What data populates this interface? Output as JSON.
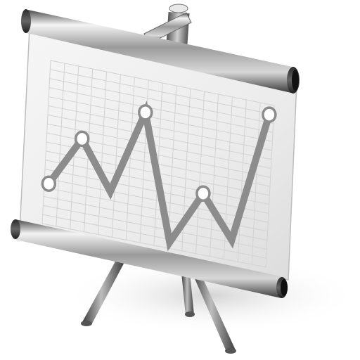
{
  "icon": {
    "name": "presentation-easel-icon",
    "colors": {
      "chart_line": "#8c8c8c",
      "grid": "#d2d2d2",
      "screen": "#eeeeee",
      "metal_dark": "#3a3a3a",
      "metal_light": "#f2f2f2",
      "leg": "#6a6a6a",
      "shadow": "#d8d8d8"
    }
  },
  "chart_data": {
    "type": "line",
    "markers": [
      true,
      true,
      false,
      true,
      true,
      false,
      true
    ],
    "values": [
      2.0,
      4.5,
      2.2,
      6.4,
      0.3,
      3.0,
      1.0,
      7.5
    ]
  }
}
